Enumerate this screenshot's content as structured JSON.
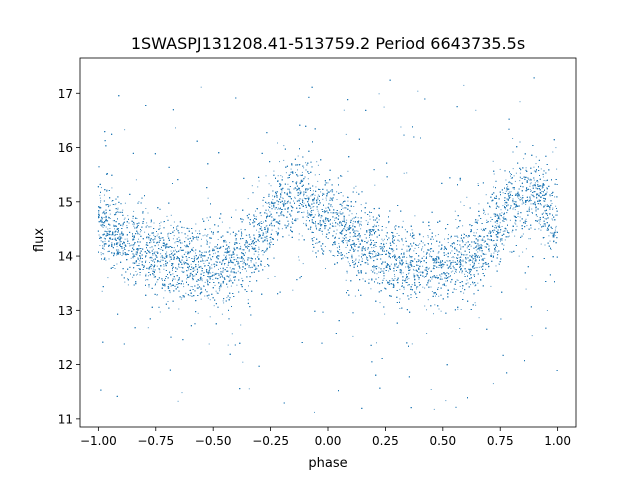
{
  "chart_data": {
    "type": "scatter",
    "title": "1SWASPJ131208.41-513759.2 Period 6643735.5s",
    "xlabel": "phase",
    "ylabel": "flux",
    "xlim": [
      -1.08,
      1.08
    ],
    "ylim": [
      10.85,
      17.65
    ],
    "grid": false,
    "legend": "none",
    "point_color": "#1f77b4",
    "x_ticks": [
      {
        "value": -1.0,
        "label": "−1.00"
      },
      {
        "value": -0.75,
        "label": "−0.75"
      },
      {
        "value": -0.5,
        "label": "−0.50"
      },
      {
        "value": -0.25,
        "label": "−0.25"
      },
      {
        "value": 0.0,
        "label": "0.00"
      },
      {
        "value": 0.25,
        "label": "0.25"
      },
      {
        "value": 0.5,
        "label": "0.50"
      },
      {
        "value": 0.75,
        "label": "0.75"
      },
      {
        "value": 1.0,
        "label": "1.00"
      }
    ],
    "y_ticks": [
      {
        "value": 11,
        "label": "11"
      },
      {
        "value": 12,
        "label": "12"
      },
      {
        "value": 13,
        "label": "13"
      },
      {
        "value": 14,
        "label": "14"
      },
      {
        "value": 15,
        "label": "15"
      },
      {
        "value": 16,
        "label": "16"
      },
      {
        "value": 17,
        "label": "17"
      }
    ],
    "series": [
      {
        "trend": {
          "phase": [
            -1.0,
            -0.9,
            -0.8,
            -0.7,
            -0.6,
            -0.5,
            -0.4,
            -0.3,
            -0.2,
            -0.1,
            0.0,
            0.1,
            0.2,
            0.3,
            0.4,
            0.5,
            0.6,
            0.7,
            0.8,
            0.9,
            1.0
          ],
          "flux": [
            14.6,
            14.35,
            14.1,
            13.95,
            13.85,
            13.8,
            13.9,
            14.3,
            15.0,
            15.15,
            14.6,
            14.35,
            14.1,
            13.95,
            13.85,
            13.8,
            13.9,
            14.3,
            15.0,
            15.15,
            14.6
          ]
        },
        "core_scatter_flux": 0.35,
        "outlier_range_flux": [
          11.1,
          17.3
        ],
        "approx_point_count": 14000
      }
    ]
  }
}
